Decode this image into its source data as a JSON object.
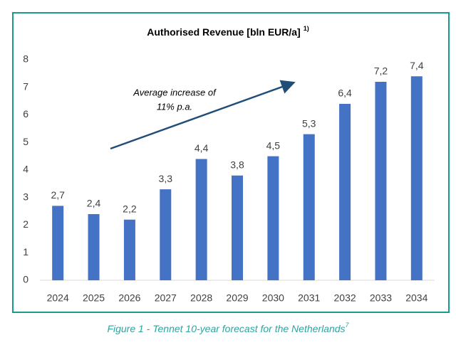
{
  "chart_data": {
    "type": "bar",
    "title": "Authorised Revenue [bln EUR/a]",
    "title_superscript": "1)",
    "annotation": [
      "Average increase of",
      "11% p.a."
    ],
    "categories": [
      "2024",
      "2025",
      "2026",
      "2027",
      "2028",
      "2029",
      "2030",
      "2031",
      "2032",
      "2033",
      "2034"
    ],
    "values": [
      2.7,
      2.4,
      2.2,
      3.3,
      4.4,
      3.8,
      4.5,
      5.3,
      6.4,
      7.2,
      7.4
    ],
    "value_labels": [
      "2,7",
      "2,4",
      "2,2",
      "3,3",
      "4,4",
      "3,8",
      "4,5",
      "5,3",
      "6,4",
      "7,2",
      "7,4"
    ],
    "color": "#4472c4",
    "ylim": [
      0,
      8
    ],
    "yticks": [
      0,
      1,
      2,
      3,
      4,
      5,
      6,
      7,
      8
    ],
    "grid": false
  },
  "caption": {
    "text": "Figure 1 - Tennet 10-year forecast for the Netherlands",
    "superscript": "7"
  }
}
